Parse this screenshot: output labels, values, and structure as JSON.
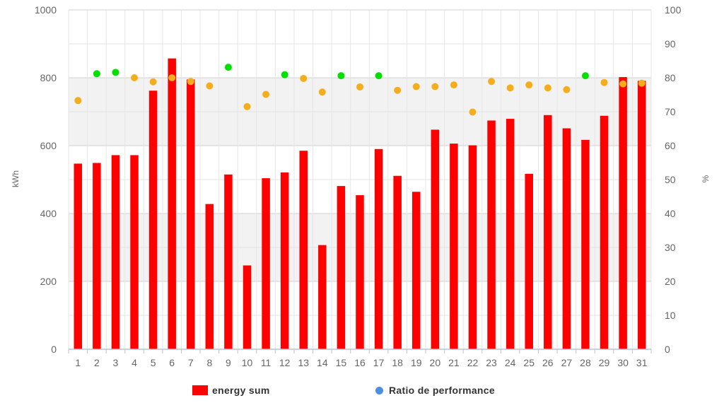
{
  "chart_data": {
    "type": "bar",
    "categories": [
      "1",
      "2",
      "3",
      "4",
      "5",
      "6",
      "7",
      "8",
      "9",
      "10",
      "11",
      "12",
      "13",
      "14",
      "15",
      "16",
      "17",
      "18",
      "19",
      "20",
      "21",
      "22",
      "23",
      "24",
      "25",
      "26",
      "27",
      "28",
      "29",
      "30",
      "31"
    ],
    "series": [
      {
        "name": "energy sum",
        "type": "bar",
        "axis": "left",
        "color": "#ff0000",
        "values": [
          547,
          549,
          572,
          572,
          762,
          857,
          795,
          428,
          515,
          247,
          504,
          521,
          585,
          307,
          481,
          454,
          590,
          511,
          464,
          647,
          606,
          601,
          674,
          679,
          517,
          690,
          651,
          617,
          688,
          802,
          791
        ]
      },
      {
        "name": "Ratio de performance",
        "type": "scatter",
        "axis": "right",
        "color": "#4a90e2",
        "values": [
          73.3,
          81.2,
          81.6,
          80.0,
          78.8,
          80.0,
          78.9,
          77.6,
          83.1,
          71.5,
          75.1,
          80.9,
          79.8,
          75.8,
          80.6,
          77.3,
          80.6,
          76.3,
          77.4,
          77.4,
          77.9,
          69.9,
          78.9,
          77.0,
          77.9,
          77.0,
          76.5,
          80.6,
          78.6,
          78.2,
          78.4
        ],
        "point_colors": [
          "#f5ad1d",
          "#00e000",
          "#00e000",
          "#f5ad1d",
          "#f5ad1d",
          "#f5ad1d",
          "#f5ad1d",
          "#f5ad1d",
          "#00e000",
          "#f5ad1d",
          "#f5ad1d",
          "#00e000",
          "#f5ad1d",
          "#f5ad1d",
          "#00e000",
          "#f5ad1d",
          "#00e000",
          "#f5ad1d",
          "#f5ad1d",
          "#f5ad1d",
          "#f5ad1d",
          "#f5ad1d",
          "#f5ad1d",
          "#f5ad1d",
          "#f5ad1d",
          "#f5ad1d",
          "#f5ad1d",
          "#00e000",
          "#f5ad1d",
          "#f5ad1d",
          "#f5ad1d"
        ]
      }
    ],
    "ylabel": "kWh",
    "ylabel_right": "%",
    "ylim": [
      0,
      1000
    ],
    "ylim_right": [
      0,
      100
    ],
    "yticks": [
      0,
      200,
      400,
      600,
      800,
      1000
    ],
    "yticks_right": [
      0,
      10,
      20,
      30,
      40,
      50,
      60,
      70,
      80,
      90,
      100
    ],
    "grid": true,
    "legend_position": "bottom-center",
    "colors": {
      "bar": "#ff0000",
      "ratio_high": "#00e000",
      "ratio_normal": "#f5ad1d",
      "ratio_legend": "#4a90e2"
    }
  },
  "legend": {
    "energy_label": "energy sum",
    "ratio_label": "Ratio de performance"
  }
}
